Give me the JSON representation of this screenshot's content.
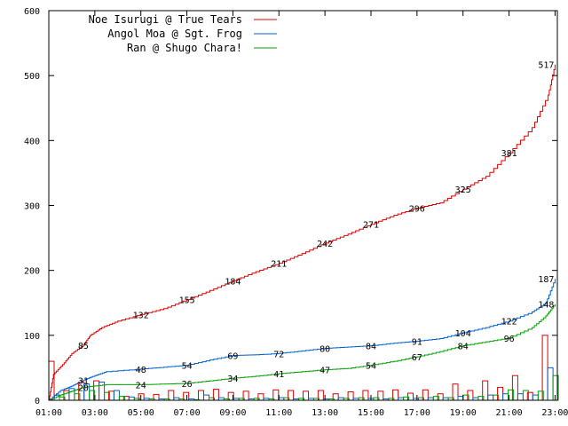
{
  "chart_data": {
    "type": "line",
    "x_ticks": [
      "01:00",
      "03:00",
      "05:00",
      "07:00",
      "09:00",
      "11:00",
      "13:00",
      "15:00",
      "17:00",
      "19:00",
      "21:00",
      "23:00"
    ],
    "y_ticks": [
      "0",
      "100",
      "200",
      "300",
      "400",
      "500",
      "600"
    ],
    "ylim": [
      0,
      600
    ],
    "xlim_hours": [
      1,
      23.1
    ],
    "grid": false,
    "legend_placement": "top-left",
    "series": [
      {
        "name": "Noe Isurugi @ True Tears",
        "color": "#e00000",
        "points": [
          [
            1.0,
            0
          ],
          [
            1.2,
            40
          ],
          [
            1.6,
            55
          ],
          [
            2.0,
            72
          ],
          [
            2.5,
            85
          ],
          [
            2.8,
            100
          ],
          [
            3.3,
            112
          ],
          [
            4.0,
            122
          ],
          [
            5.0,
            132
          ],
          [
            6.0,
            141
          ],
          [
            7.0,
            155
          ],
          [
            8.0,
            169
          ],
          [
            9.0,
            184
          ],
          [
            10.0,
            198
          ],
          [
            11.0,
            211
          ],
          [
            12.0,
            226
          ],
          [
            13.0,
            242
          ],
          [
            14.0,
            256
          ],
          [
            15.0,
            271
          ],
          [
            16.0,
            285
          ],
          [
            17.0,
            296
          ],
          [
            18.0,
            304
          ],
          [
            19.0,
            325
          ],
          [
            20.0,
            345
          ],
          [
            21.0,
            381
          ],
          [
            22.0,
            420
          ],
          [
            22.7,
            470
          ],
          [
            23.0,
            517
          ]
        ],
        "labels": [
          {
            "x": 2.5,
            "y": 85,
            "text": "85"
          },
          {
            "x": 5.0,
            "y": 132,
            "text": "132"
          },
          {
            "x": 7.0,
            "y": 155,
            "text": "155"
          },
          {
            "x": 9.0,
            "y": 184,
            "text": "184"
          },
          {
            "x": 11.0,
            "y": 211,
            "text": "211"
          },
          {
            "x": 13.0,
            "y": 242,
            "text": "242"
          },
          {
            "x": 15.0,
            "y": 271,
            "text": "271"
          },
          {
            "x": 17.0,
            "y": 296,
            "text": "296"
          },
          {
            "x": 19.0,
            "y": 325,
            "text": "325"
          },
          {
            "x": 21.0,
            "y": 381,
            "text": "381"
          },
          {
            "x": 23.0,
            "y": 517,
            "text": "517"
          }
        ],
        "hourly": [
          60,
          15,
          28,
          30,
          14,
          6,
          10,
          9,
          15,
          12,
          15,
          17,
          12,
          14,
          10,
          16,
          15,
          14,
          15,
          10,
          13,
          15,
          14,
          16,
          11,
          16,
          10,
          25,
          15,
          30,
          20,
          38,
          12,
          100
        ]
      },
      {
        "name": "Angol Moa @ Sgt. Frog",
        "color": "#0060d0",
        "points": [
          [
            1.0,
            0
          ],
          [
            1.5,
            15
          ],
          [
            2.0,
            22
          ],
          [
            2.5,
            31
          ],
          [
            3.0,
            38
          ],
          [
            3.5,
            44
          ],
          [
            5.0,
            48
          ],
          [
            6.0,
            51
          ],
          [
            7.0,
            54
          ],
          [
            8.0,
            62
          ],
          [
            9.0,
            69
          ],
          [
            10.0,
            70
          ],
          [
            11.0,
            72
          ],
          [
            12.0,
            76
          ],
          [
            13.0,
            80
          ],
          [
            14.0,
            82
          ],
          [
            15.0,
            84
          ],
          [
            16.0,
            88
          ],
          [
            17.0,
            91
          ],
          [
            18.0,
            95
          ],
          [
            19.0,
            104
          ],
          [
            20.0,
            112
          ],
          [
            21.0,
            122
          ],
          [
            22.0,
            136
          ],
          [
            22.6,
            150
          ],
          [
            23.0,
            187
          ]
        ],
        "labels": [
          {
            "x": 2.5,
            "y": 31,
            "text": "31"
          },
          {
            "x": 5.0,
            "y": 48,
            "text": "48"
          },
          {
            "x": 7.0,
            "y": 54,
            "text": "54"
          },
          {
            "x": 9.0,
            "y": 69,
            "text": "69"
          },
          {
            "x": 11.0,
            "y": 72,
            "text": "72"
          },
          {
            "x": 13.0,
            "y": 80,
            "text": "80"
          },
          {
            "x": 15.0,
            "y": 84,
            "text": "84"
          },
          {
            "x": 17.0,
            "y": 91,
            "text": "91"
          },
          {
            "x": 19.0,
            "y": 104,
            "text": "104"
          },
          {
            "x": 21.0,
            "y": 122,
            "text": "122"
          },
          {
            "x": 23.0,
            "y": 187,
            "text": "187"
          }
        ],
        "hourly": [
          8,
          18,
          25,
          28,
          15,
          5,
          3,
          2,
          4,
          2,
          8,
          4,
          3,
          2,
          3,
          4,
          2,
          3,
          2,
          4,
          3,
          3,
          2,
          4,
          3,
          4,
          4,
          6,
          4,
          8,
          10,
          10,
          8,
          50
        ]
      },
      {
        "name": "Ran @ Shugo Chara!",
        "color": "#00a000",
        "points": [
          [
            1.0,
            0
          ],
          [
            1.5,
            8
          ],
          [
            2.0,
            14
          ],
          [
            2.5,
            20
          ],
          [
            3.0,
            22
          ],
          [
            3.5,
            24
          ],
          [
            5.0,
            24
          ],
          [
            6.0,
            25
          ],
          [
            7.0,
            26
          ],
          [
            8.0,
            30
          ],
          [
            9.0,
            34
          ],
          [
            10.0,
            37
          ],
          [
            11.0,
            41
          ],
          [
            12.0,
            44
          ],
          [
            13.0,
            47
          ],
          [
            14.0,
            49
          ],
          [
            15.0,
            54
          ],
          [
            16.0,
            60
          ],
          [
            17.0,
            67
          ],
          [
            18.0,
            75
          ],
          [
            19.0,
            84
          ],
          [
            20.0,
            90
          ],
          [
            21.0,
            96
          ],
          [
            22.0,
            112
          ],
          [
            22.6,
            130
          ],
          [
            23.0,
            148
          ]
        ],
        "labels": [
          {
            "x": 2.5,
            "y": 20,
            "text": "20"
          },
          {
            "x": 5.0,
            "y": 24,
            "text": "24"
          },
          {
            "x": 7.0,
            "y": 26,
            "text": "26"
          },
          {
            "x": 9.0,
            "y": 34,
            "text": "34"
          },
          {
            "x": 11.0,
            "y": 41,
            "text": "41"
          },
          {
            "x": 13.0,
            "y": 47,
            "text": "47"
          },
          {
            "x": 15.0,
            "y": 54,
            "text": "54"
          },
          {
            "x": 17.0,
            "y": 67,
            "text": "67"
          },
          {
            "x": 19.0,
            "y": 84,
            "text": "84"
          },
          {
            "x": 21.0,
            "y": 96,
            "text": "96"
          },
          {
            "x": 23.0,
            "y": 148,
            "text": "148"
          }
        ],
        "hourly": [
          5,
          10,
          15,
          12,
          6,
          3,
          2,
          2,
          2,
          1,
          4,
          2,
          3,
          3,
          2,
          4,
          3,
          3,
          2,
          3,
          4,
          4,
          3,
          5,
          4,
          6,
          4,
          8,
          6,
          8,
          16,
          15,
          14,
          38
        ]
      }
    ]
  }
}
